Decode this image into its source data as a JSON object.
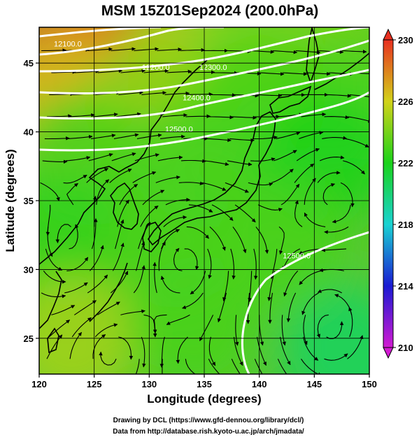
{
  "chart_data": {
    "type": "heatmap",
    "title": "MSM 15Z01Sep2024 (200.0hPa)",
    "xlabel": "Longitude (degrees)",
    "ylabel": "Latitude  (degrees)",
    "xlim": [
      120,
      150
    ],
    "ylim": [
      22.4,
      47.6
    ],
    "xticks": [
      {
        "value": 120,
        "label": "120"
      },
      {
        "value": 125,
        "label": "125"
      },
      {
        "value": 130,
        "label": "130"
      },
      {
        "value": 135,
        "label": "135"
      },
      {
        "value": 140,
        "label": "140"
      },
      {
        "value": 145,
        "label": "145"
      },
      {
        "value": 150,
        "label": "150"
      }
    ],
    "yticks": [
      {
        "value": 25,
        "label": "25"
      },
      {
        "value": 30,
        "label": "30"
      },
      {
        "value": 35,
        "label": "35"
      },
      {
        "value": 40,
        "label": "40"
      },
      {
        "value": 45,
        "label": "45"
      }
    ],
    "grid": true,
    "colorbar": {
      "min": 210,
      "max": 230,
      "ticks": [
        {
          "value": 230,
          "label": "230"
        },
        {
          "value": 226,
          "label": "226"
        },
        {
          "value": 222,
          "label": "222"
        },
        {
          "value": 218,
          "label": "218"
        },
        {
          "value": 214,
          "label": "214"
        },
        {
          "value": 210,
          "label": "210"
        }
      ]
    },
    "temperature_field_K": [
      {
        "lon": 122,
        "lat": 46,
        "value": 228.5
      },
      {
        "lon": 128,
        "lat": 46,
        "value": 228
      },
      {
        "lon": 134,
        "lat": 46,
        "value": 225
      },
      {
        "lon": 140,
        "lat": 46,
        "value": 224
      },
      {
        "lon": 146,
        "lat": 46,
        "value": 224
      },
      {
        "lon": 122,
        "lat": 42,
        "value": 226.5
      },
      {
        "lon": 130,
        "lat": 42,
        "value": 224.5
      },
      {
        "lon": 140,
        "lat": 42,
        "value": 223
      },
      {
        "lon": 148,
        "lat": 42,
        "value": 223
      },
      {
        "lon": 124,
        "lat": 38,
        "value": 223
      },
      {
        "lon": 135,
        "lat": 38,
        "value": 223
      },
      {
        "lon": 146,
        "lat": 38,
        "value": 222
      },
      {
        "lon": 122,
        "lat": 32,
        "value": 222.5
      },
      {
        "lon": 132,
        "lat": 32,
        "value": 223
      },
      {
        "lon": 142,
        "lat": 32,
        "value": 223
      },
      {
        "lon": 123,
        "lat": 25,
        "value": 225
      },
      {
        "lon": 134,
        "lat": 26,
        "value": 223
      },
      {
        "lon": 148,
        "lat": 24,
        "value": 220.5
      }
    ],
    "contours": [
      {
        "label": "12100.0",
        "lon": 122.6,
        "lat": 46.2
      },
      {
        "label": "12200.0",
        "lon": 130.6,
        "lat": 44.5
      },
      {
        "label": "12300.0",
        "lon": 135.8,
        "lat": 44.5
      },
      {
        "label": "12400.0",
        "lon": 134.3,
        "lat": 42.3
      },
      {
        "label": "12500.0",
        "lon": 132.7,
        "lat": 40.0
      },
      {
        "label": "12500.0",
        "lon": 143.4,
        "lat": 30.8
      }
    ],
    "flow_vectors": "streamlines"
  },
  "credits": {
    "line1": "Drawing by DCL (https://www.gfd-dennou.org/library/dcl/)",
    "line2": "Data from http://database.rish.kyoto-u.ac.jp/arch/jmadata/"
  }
}
